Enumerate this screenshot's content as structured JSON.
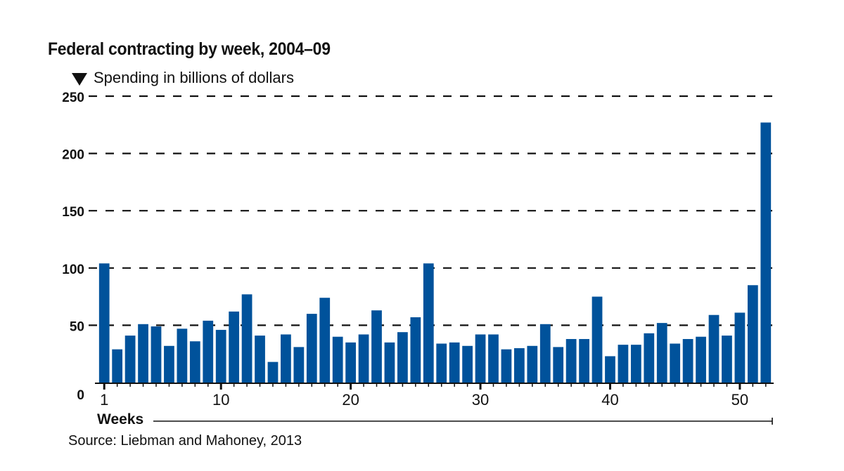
{
  "chart_data": {
    "type": "bar",
    "title": "Federal contracting by week, 2004–09",
    "subtitle": "Spending in billions of dollars",
    "xlabel": "Weeks",
    "ylabel": "Spending in billions of dollars",
    "ylim": [
      0,
      250
    ],
    "yticks": [
      0,
      50,
      100,
      150,
      200,
      250
    ],
    "xticks": [
      1,
      10,
      20,
      30,
      40,
      50
    ],
    "grid": true,
    "bar_color": "#00529b",
    "categories": [
      1,
      2,
      3,
      4,
      5,
      6,
      7,
      8,
      9,
      10,
      11,
      12,
      13,
      14,
      15,
      16,
      17,
      18,
      19,
      20,
      21,
      22,
      23,
      24,
      25,
      26,
      27,
      28,
      29,
      30,
      31,
      32,
      33,
      34,
      35,
      36,
      37,
      38,
      39,
      40,
      41,
      42,
      43,
      44,
      45,
      46,
      47,
      48,
      49,
      50,
      51,
      52
    ],
    "values": [
      104,
      29,
      41,
      51,
      49,
      32,
      47,
      36,
      54,
      46,
      62,
      77,
      41,
      18,
      42,
      31,
      60,
      74,
      40,
      35,
      42,
      63,
      35,
      44,
      57,
      104,
      34,
      35,
      32,
      42,
      42,
      29,
      30,
      32,
      51,
      31,
      38,
      38,
      75,
      23,
      33,
      33,
      43,
      52,
      34,
      38,
      40,
      59,
      41,
      61,
      85,
      227
    ],
    "source": "Source: Liebman and Mahoney, 2013"
  }
}
